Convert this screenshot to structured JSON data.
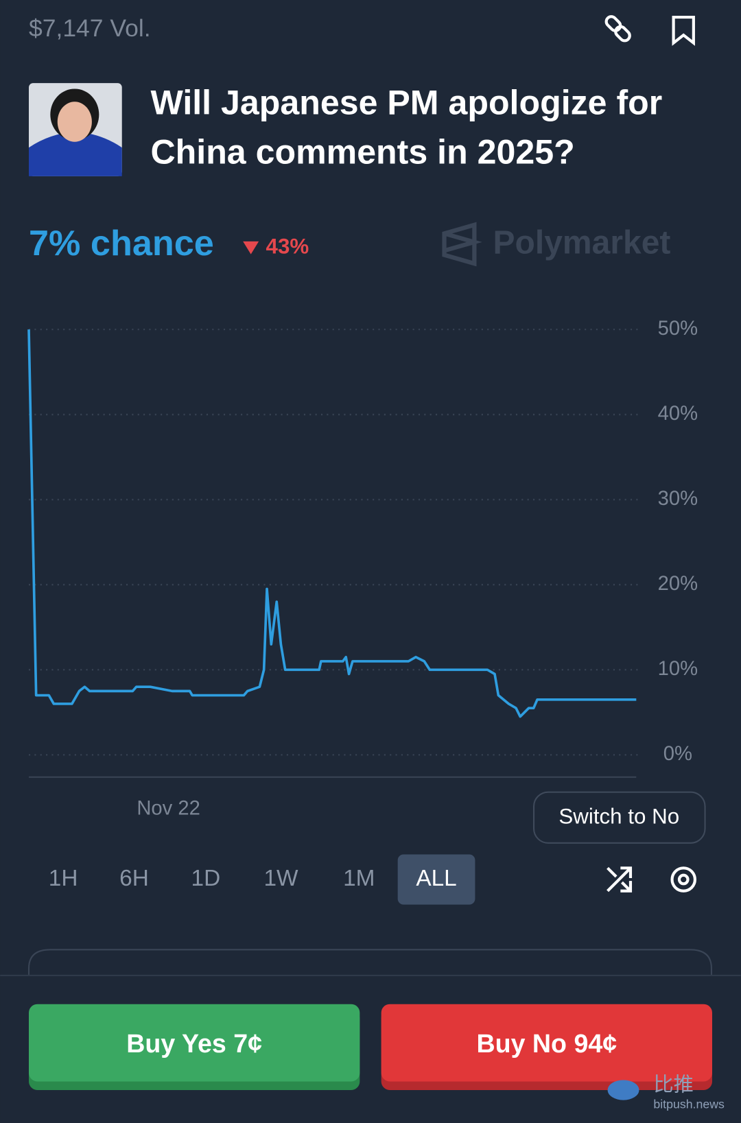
{
  "header": {
    "volume": "$7,147 Vol."
  },
  "market": {
    "title_lines": [
      "Will Japanese PM apologize for",
      "China comments in 2025?"
    ],
    "chance": "7% chance",
    "change": "43%",
    "brand": "Polymarket"
  },
  "chart_data": {
    "type": "line",
    "color": "#2f9ee0",
    "x": [
      0,
      1.2,
      3.3,
      4.1,
      7.1,
      8.3,
      9.2,
      10,
      13,
      17.1,
      17.7,
      20,
      23.6,
      26.5,
      26.9,
      35.4,
      36,
      38,
      38.7,
      39.2,
      39.9,
      40.8,
      41.5,
      42.2,
      47.8,
      48.1,
      51.7,
      52.2,
      52.7,
      53.3,
      62.5,
      63.7,
      65.1,
      66,
      75.5,
      76.7,
      77.3,
      79,
      80.2,
      80.9,
      82.3,
      83.1,
      83.7,
      84.7,
      100
    ],
    "values": [
      50,
      7,
      7,
      6,
      6,
      7.5,
      8,
      7.5,
      7.5,
      7.5,
      8,
      8,
      7.5,
      7.5,
      7,
      7,
      7.5,
      8,
      10,
      19.5,
      13,
      18,
      13,
      10,
      10,
      11,
      11,
      11.5,
      9.5,
      11,
      11,
      11.5,
      11,
      10,
      10,
      9.5,
      7,
      6,
      5.5,
      4.5,
      5.5,
      5.5,
      6.5,
      6.5,
      6.5
    ],
    "xlim": [
      0,
      100
    ],
    "xticks": [
      {
        "value": 23,
        "label": "Nov 22"
      }
    ],
    "ylim": [
      0,
      50
    ],
    "yticks": [
      {
        "value": 0,
        "label": "0%"
      },
      {
        "value": 10,
        "label": "10%"
      },
      {
        "value": 20,
        "label": "20%"
      },
      {
        "value": 30,
        "label": "30%"
      },
      {
        "value": 40,
        "label": "40%"
      },
      {
        "value": 50,
        "label": "50%"
      }
    ],
    "grid": true
  },
  "controls": {
    "switch": "Switch to No",
    "ranges": [
      "1H",
      "6H",
      "1D",
      "1W",
      "1M",
      "ALL"
    ],
    "active_range": "ALL"
  },
  "actions": {
    "buy_yes": "Buy Yes 7¢",
    "buy_no": "Buy No 94¢"
  },
  "watermark": {
    "cn": "比推",
    "site": "bitpush.news"
  }
}
